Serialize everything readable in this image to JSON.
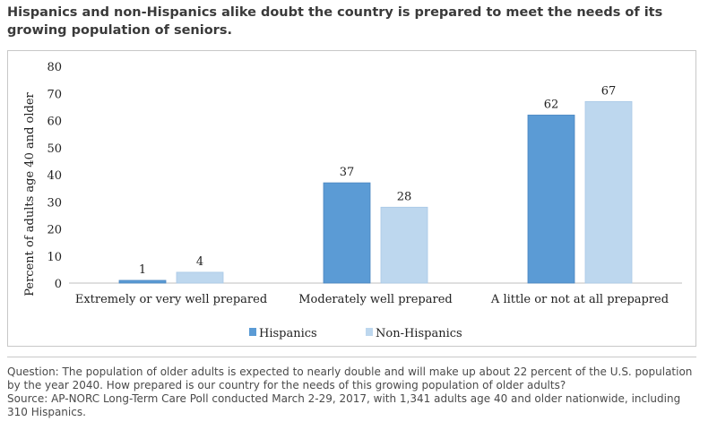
{
  "chart_data": {
    "type": "bar",
    "title": "Hispanics and non-Hispanics alike doubt the country is prepared to meet the needs of its growing population of seniors.",
    "ylabel": "Percent of adults age 40 and older",
    "xlabel": "",
    "ylim": [
      0,
      80
    ],
    "yticks": [
      0,
      10,
      20,
      30,
      40,
      50,
      60,
      70,
      80
    ],
    "categories": [
      "Extremely or very well prepared",
      "Moderately well prepared",
      "A little or not at all prepapred"
    ],
    "series": [
      {
        "name": "Hispanics",
        "color": "#5b9bd5",
        "values": [
          1,
          37,
          62
        ]
      },
      {
        "name": "Non-Hispanics",
        "color": "#bdd7ee",
        "values": [
          4,
          28,
          67
        ]
      }
    ],
    "grid": false,
    "legend_position": "bottom"
  },
  "notes": {
    "question": "Question: The population of older adults is expected to nearly double and will make up about 22 percent of the U.S. population by the year 2040. How prepared is our country for the needs of this growing population of older adults?",
    "source": "Source: AP-NORC Long-Term Care Poll conducted March 2-29, 2017, with 1,341 adults age 40 and older nationwide, including 310 Hispanics."
  }
}
